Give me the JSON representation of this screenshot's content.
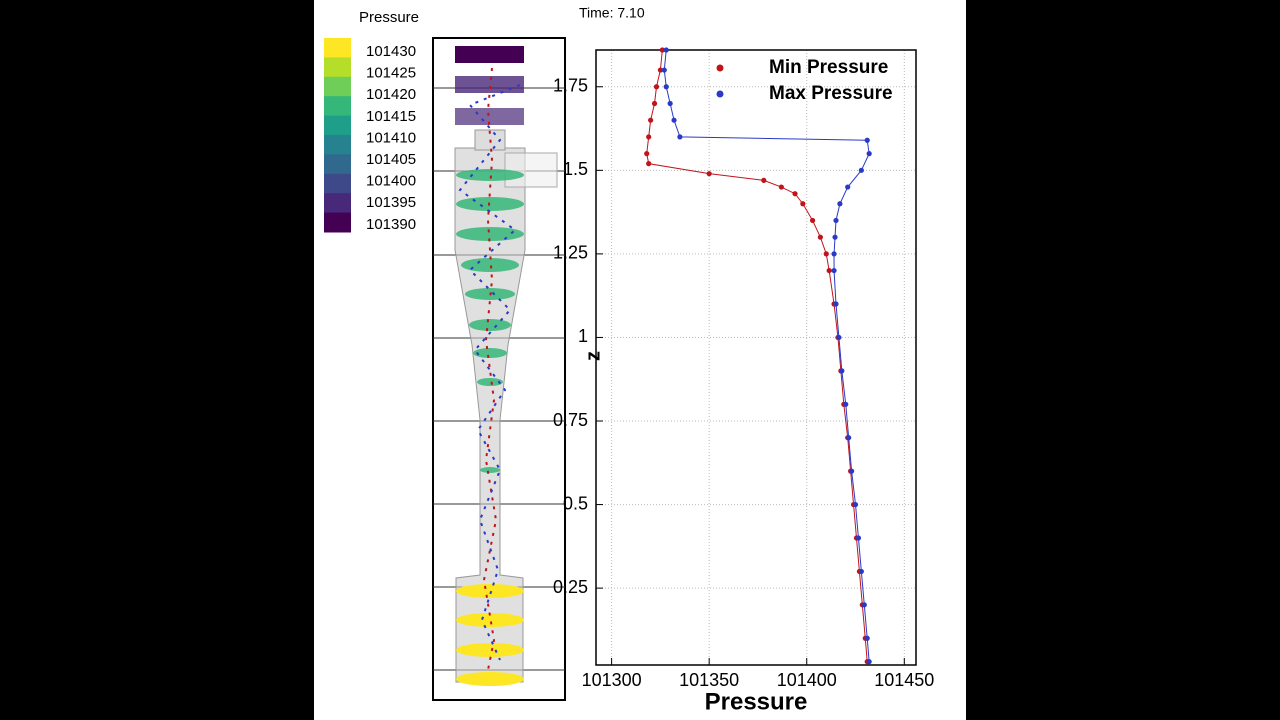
{
  "time_label": "Time: 7.10",
  "colorbar": {
    "title": "Pressure",
    "colors": [
      "#fde725",
      "#b5de2b",
      "#6ece58",
      "#35b779",
      "#1f9e89",
      "#26828e",
      "#31688e",
      "#3e4989",
      "#482878",
      "#440154"
    ],
    "ticks": [
      101430,
      101425,
      101420,
      101415,
      101410,
      101405,
      101400,
      101395,
      101390
    ]
  },
  "chart_data": {
    "type": "scatter-line",
    "x_label": "Pressure",
    "y_label": "z",
    "xlim": [
      101292,
      101456
    ],
    "ylim": [
      0.02,
      1.86
    ],
    "xticks": [
      101300,
      101350,
      101400,
      101450
    ],
    "yticks": [
      0.25,
      0.5,
      0.75,
      1,
      1.25,
      1.5,
      1.75
    ],
    "grid": true,
    "legend": "upper-right",
    "series": [
      {
        "name": "Min Pressure",
        "color": "#c0141c",
        "x": [
          101431,
          101430,
          101428.5,
          101427,
          101425.5,
          101424,
          101422.5,
          101421,
          101419,
          101417.5,
          101416,
          101414,
          101411.5,
          101410,
          101407,
          101403,
          101398,
          101394,
          101387,
          101378,
          101350,
          101319,
          101318,
          101319,
          101320,
          101322,
          101323,
          101325,
          101326
        ],
        "y": [
          0.03,
          0.1,
          0.2,
          0.3,
          0.4,
          0.5,
          0.6,
          0.7,
          0.8,
          0.9,
          1.0,
          1.1,
          1.2,
          1.25,
          1.3,
          1.35,
          1.4,
          1.43,
          1.45,
          1.47,
          1.49,
          1.52,
          1.55,
          1.6,
          1.65,
          1.7,
          1.75,
          1.8,
          1.86
        ]
      },
      {
        "name": "Max Pressure",
        "color": "#2a3ac8",
        "x": [
          101432,
          101431,
          101429.5,
          101428,
          101426.5,
          101425,
          101423,
          101421.5,
          101420,
          101418,
          101416.5,
          101415,
          101414,
          101414,
          101414.5,
          101415,
          101417,
          101421,
          101428,
          101432,
          101431,
          101335,
          101332,
          101330,
          101328,
          101327,
          101328
        ],
        "y": [
          0.03,
          0.1,
          0.2,
          0.3,
          0.4,
          0.5,
          0.6,
          0.7,
          0.8,
          0.9,
          1.0,
          1.1,
          1.2,
          1.25,
          1.3,
          1.35,
          1.4,
          1.45,
          1.5,
          1.55,
          1.59,
          1.6,
          1.65,
          1.7,
          1.75,
          1.8,
          1.86
        ]
      }
    ]
  }
}
